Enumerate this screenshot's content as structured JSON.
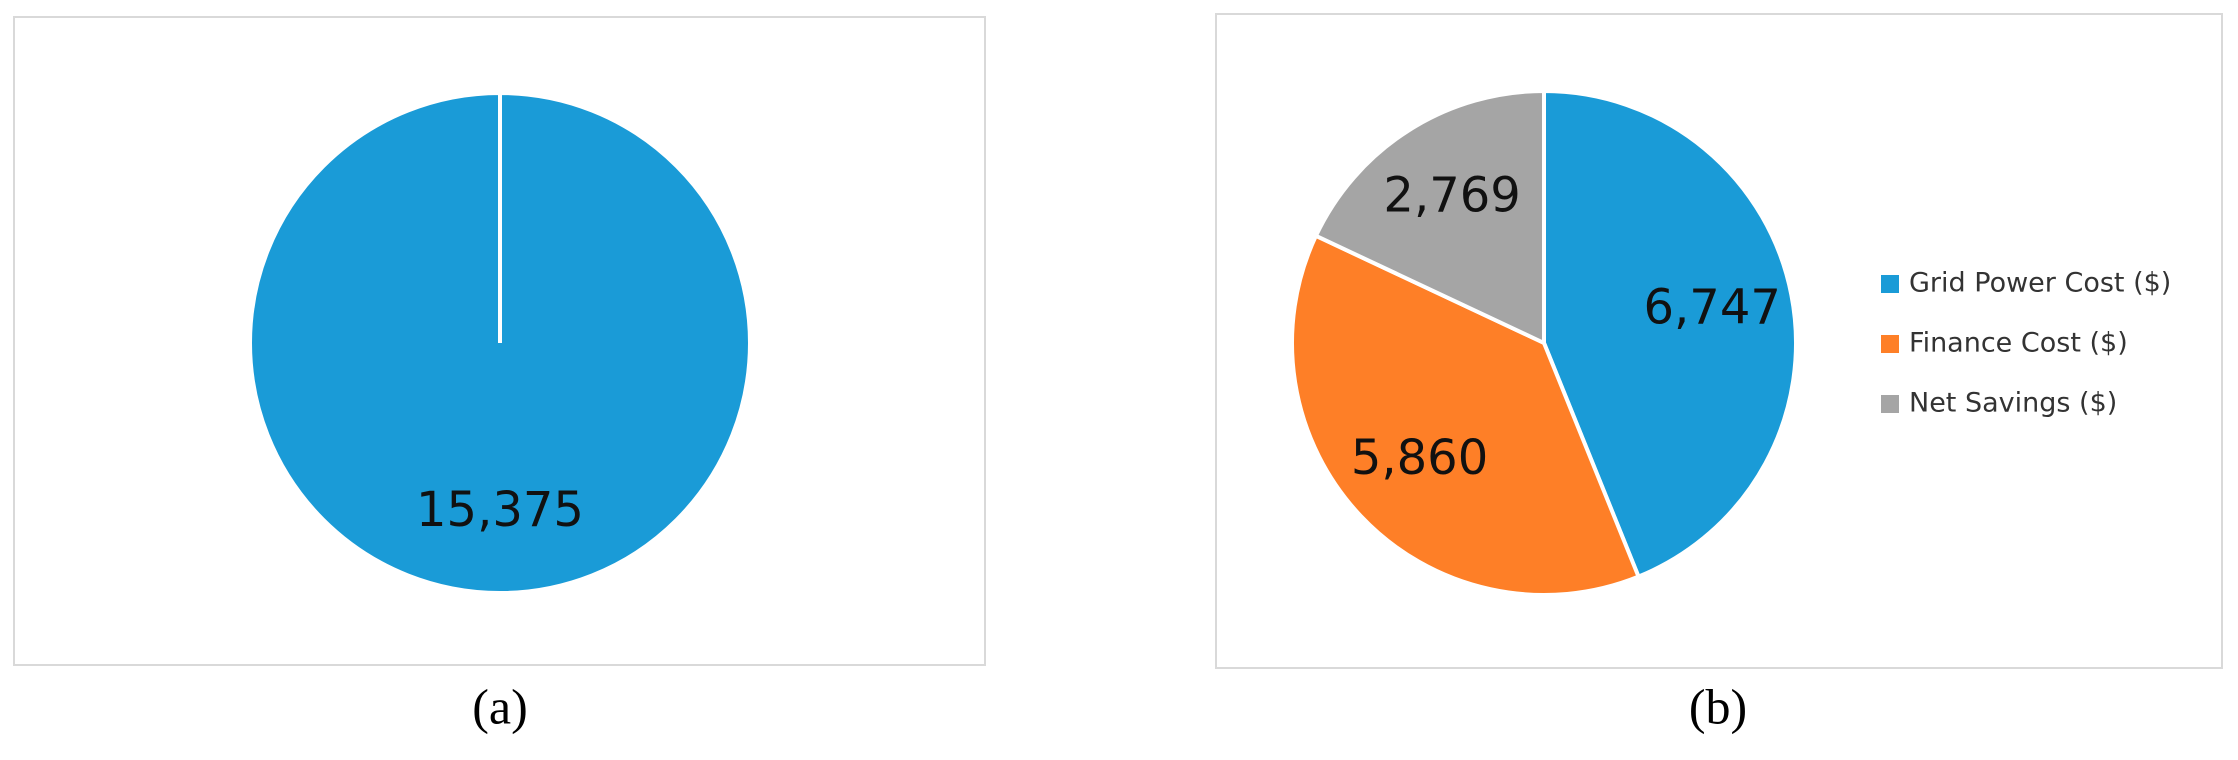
{
  "chart_data": [
    {
      "type": "pie",
      "caption": "(a)",
      "values": [
        15375
      ],
      "value_labels": [
        "15,375"
      ],
      "colors": [
        "#1a9bd7"
      ]
    },
    {
      "type": "pie",
      "caption": "(b)",
      "categories": [
        "Grid Power Cost ($)",
        "Finance Cost ($)",
        "Net Savings ($)"
      ],
      "values": [
        6747,
        5860,
        2769
      ],
      "value_labels": [
        "6,747",
        "5,860",
        "2,769"
      ],
      "colors": [
        "#1a9bd7",
        "#fe7f27",
        "#a5a5a5"
      ],
      "legend": "right"
    }
  ]
}
